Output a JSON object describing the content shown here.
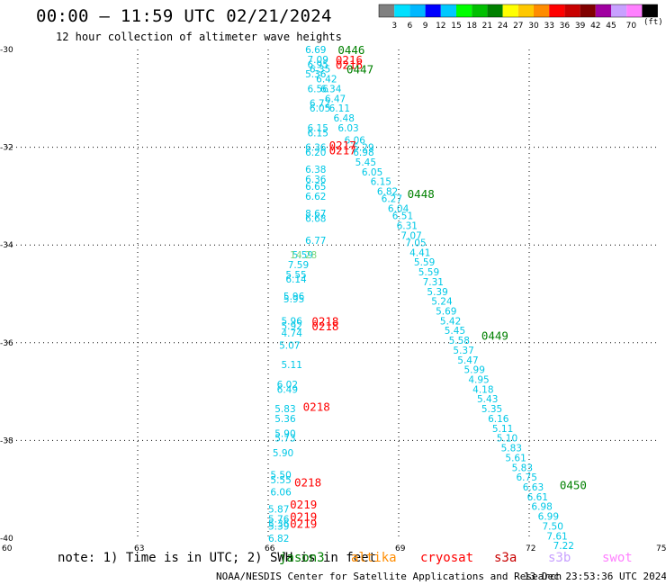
{
  "header": {
    "title": "00:00 – 11:59 UTC 02/21/2024",
    "subtitle": "12 hour collection of altimeter wave heights"
  },
  "scale": {
    "unit": "(ft)",
    "colors": [
      "#808080",
      "#00e0ff",
      "#00b8ff",
      "#0000ff",
      "#00c8ff",
      "#00ff00",
      "#00c000",
      "#008000",
      "#ffff00",
      "#ffc800",
      "#ff8c00",
      "#ff0000",
      "#c80000",
      "#800000",
      "#a000a0",
      "#c8a0ff",
      "#ff80ff",
      "#000000"
    ],
    "labels": [
      "3",
      "6",
      "9",
      "12",
      "15",
      "18",
      "21",
      "24",
      "27",
      "30",
      "33",
      "36",
      "39",
      "42",
      "45",
      "70"
    ]
  },
  "note": "note:  1) Time is in UTC; 2) SWH is in feet",
  "satellites": [
    {
      "name": "jason3",
      "color": "#008000"
    },
    {
      "name": "altika",
      "color": "#ff8c00"
    },
    {
      "name": "cryosat",
      "color": "#ff0000"
    },
    {
      "name": "s3a",
      "color": "#c80000"
    },
    {
      "name": "s3b",
      "color": "#c8a0ff"
    },
    {
      "name": "swot",
      "color": "#ff80ff"
    }
  ],
  "footer": {
    "credit": "NOAA/NESDIS Center for Satellite Applications and Research",
    "generated": "13 Dec 23:53:36 UTC 2024"
  },
  "chart_data": {
    "type": "scatter",
    "xlim": [
      60,
      75
    ],
    "ylim": [
      -40,
      -30
    ],
    "x_ticks": [
      60,
      63,
      66,
      69,
      72,
      75
    ],
    "y_ticks": [
      -30,
      -32,
      -34,
      -36,
      -38,
      -40
    ],
    "grid": true,
    "tracks": [
      {
        "points": [
          {
            "x": 66.85,
            "y": -30.0,
            "v": "6.69"
          },
          {
            "x": 66.9,
            "y": -30.2,
            "v": "7.09"
          },
          {
            "x": 66.9,
            "y": -30.3,
            "v": "6.95"
          },
          {
            "x": 66.95,
            "y": -30.4,
            "v": "6.35"
          },
          {
            "x": 66.85,
            "y": -30.5,
            "v": "5.36"
          },
          {
            "x": 67.1,
            "y": -30.6,
            "v": "6.42"
          },
          {
            "x": 67.2,
            "y": -30.8,
            "v": "6.34"
          },
          {
            "x": 66.9,
            "y": -30.8,
            "v": "6.56"
          },
          {
            "x": 67.3,
            "y": -31.0,
            "v": "6.47"
          },
          {
            "x": 66.95,
            "y": -31.1,
            "v": "6.72"
          },
          {
            "x": 67.4,
            "y": -31.2,
            "v": "6.11"
          },
          {
            "x": 66.95,
            "y": -31.2,
            "v": "6.05"
          },
          {
            "x": 67.5,
            "y": -31.4,
            "v": "6.48"
          },
          {
            "x": 67.6,
            "y": -31.6,
            "v": "6.03"
          },
          {
            "x": 66.9,
            "y": -31.6,
            "v": "6.15"
          },
          {
            "x": 66.9,
            "y": -31.7,
            "v": "6.15"
          },
          {
            "x": 67.75,
            "y": -31.85,
            "v": "6.06"
          },
          {
            "x": 67.95,
            "y": -32.0,
            "v": "5.29"
          },
          {
            "x": 66.85,
            "y": -32.0,
            "v": "6.36"
          },
          {
            "x": 66.85,
            "y": -32.1,
            "v": "6.20"
          },
          {
            "x": 67.95,
            "y": -32.1,
            "v": "6.98"
          },
          {
            "x": 68.0,
            "y": -32.3,
            "v": "5.45"
          },
          {
            "x": 66.85,
            "y": -32.45,
            "v": "6.38"
          },
          {
            "x": 68.15,
            "y": -32.5,
            "v": "6.05"
          },
          {
            "x": 66.85,
            "y": -32.65,
            "v": "6.36"
          },
          {
            "x": 68.35,
            "y": -32.7,
            "v": "6.15"
          },
          {
            "x": 66.85,
            "y": -32.8,
            "v": "6.65"
          },
          {
            "x": 68.5,
            "y": -32.9,
            "v": "6.82"
          },
          {
            "x": 68.6,
            "y": -33.05,
            "v": "6.27"
          },
          {
            "x": 66.85,
            "y": -33.0,
            "v": "6.62"
          },
          {
            "x": 68.75,
            "y": -33.25,
            "v": "6.04"
          },
          {
            "x": 68.85,
            "y": -33.4,
            "v": "6.51"
          },
          {
            "x": 66.85,
            "y": -33.35,
            "v": "8.67"
          },
          {
            "x": 66.85,
            "y": -33.45,
            "v": "6.68"
          },
          {
            "x": 68.95,
            "y": -33.6,
            "v": "6.31"
          },
          {
            "x": 69.05,
            "y": -33.8,
            "v": "7.07"
          },
          {
            "x": 69.15,
            "y": -33.95,
            "v": "7.05"
          },
          {
            "x": 66.85,
            "y": -33.9,
            "v": "6.77"
          },
          {
            "x": 69.25,
            "y": -34.15,
            "v": "4.41"
          },
          {
            "x": 69.35,
            "y": -34.35,
            "v": "5.59"
          },
          {
            "x": 69.45,
            "y": -34.55,
            "v": "5.59"
          },
          {
            "x": 69.55,
            "y": -34.75,
            "v": "7.31"
          },
          {
            "x": 69.65,
            "y": -34.95,
            "v": "5.39"
          },
          {
            "x": 69.75,
            "y": -35.15,
            "v": "5.24"
          },
          {
            "x": 69.85,
            "y": -35.35,
            "v": "5.69"
          },
          {
            "x": 69.95,
            "y": -35.55,
            "v": "5.42"
          },
          {
            "x": 70.05,
            "y": -35.75,
            "v": "5.45"
          },
          {
            "x": 70.15,
            "y": -35.95,
            "v": "5.58"
          },
          {
            "x": 70.25,
            "y": -36.15,
            "v": "5.37"
          },
          {
            "x": 70.35,
            "y": -36.35,
            "v": "5.47"
          },
          {
            "x": 70.5,
            "y": -36.55,
            "v": "5.99"
          },
          {
            "x": 70.6,
            "y": -36.75,
            "v": "4.95"
          },
          {
            "x": 70.7,
            "y": -36.95,
            "v": "4.18"
          },
          {
            "x": 70.8,
            "y": -37.15,
            "v": "5.43"
          },
          {
            "x": 70.9,
            "y": -37.35,
            "v": "5.35"
          },
          {
            "x": 71.05,
            "y": -37.55,
            "v": "6.16"
          },
          {
            "x": 71.15,
            "y": -37.75,
            "v": "5.11"
          },
          {
            "x": 71.25,
            "y": -37.95,
            "v": "5.10"
          },
          {
            "x": 71.35,
            "y": -38.15,
            "v": "5.83"
          },
          {
            "x": 71.45,
            "y": -38.35,
            "v": "5.61"
          },
          {
            "x": 71.6,
            "y": -38.55,
            "v": "5.83"
          },
          {
            "x": 71.7,
            "y": -38.75,
            "v": "6.75"
          },
          {
            "x": 71.85,
            "y": -38.95,
            "v": "6.63"
          },
          {
            "x": 71.95,
            "y": -39.15,
            "v": "6.61"
          },
          {
            "x": 72.05,
            "y": -39.35,
            "v": "6.98"
          },
          {
            "x": 72.2,
            "y": -39.55,
            "v": "6.99"
          },
          {
            "x": 72.3,
            "y": -39.75,
            "v": "7.50"
          },
          {
            "x": 72.4,
            "y": -39.95,
            "v": "7.61"
          },
          {
            "x": 72.55,
            "y": -40.15,
            "v": "7.22"
          }
        ]
      },
      {
        "points": [
          {
            "x": 66.55,
            "y": -34.2,
            "v": "5.59"
          },
          {
            "x": 66.45,
            "y": -34.4,
            "v": "7.59"
          },
          {
            "x": 66.4,
            "y": -34.6,
            "v": "5.55"
          },
          {
            "x": 66.4,
            "y": -34.7,
            "v": "6.14"
          },
          {
            "x": 66.35,
            "y": -35.05,
            "v": "5.96"
          },
          {
            "x": 66.35,
            "y": -35.1,
            "v": "5.95"
          },
          {
            "x": 66.3,
            "y": -35.55,
            "v": "5.96"
          },
          {
            "x": 66.3,
            "y": -35.65,
            "v": "5.92"
          },
          {
            "x": 66.3,
            "y": -35.8,
            "v": "4.74"
          },
          {
            "x": 66.25,
            "y": -36.05,
            "v": "5.07"
          },
          {
            "x": 66.3,
            "y": -36.45,
            "v": "5.11"
          },
          {
            "x": 66.2,
            "y": -36.85,
            "v": "6.02"
          },
          {
            "x": 66.2,
            "y": -36.95,
            "v": "6.49"
          },
          {
            "x": 66.15,
            "y": -37.35,
            "v": "5.83"
          },
          {
            "x": 66.15,
            "y": -37.55,
            "v": "5.36"
          },
          {
            "x": 66.15,
            "y": -37.85,
            "v": "5.90"
          },
          {
            "x": 66.15,
            "y": -37.95,
            "v": "5.73"
          },
          {
            "x": 66.1,
            "y": -38.25,
            "v": "5.90"
          },
          {
            "x": 66.05,
            "y": -38.7,
            "v": "5.50"
          },
          {
            "x": 66.05,
            "y": -38.8,
            "v": "5.55"
          },
          {
            "x": 66.05,
            "y": -39.05,
            "v": "6.06"
          },
          {
            "x": 66.0,
            "y": -39.4,
            "v": "5.87"
          },
          {
            "x": 66.0,
            "y": -39.6,
            "v": "5.76"
          },
          {
            "x": 66.0,
            "y": -39.7,
            "v": "5.36"
          },
          {
            "x": 66.0,
            "y": -39.75,
            "v": "5.39"
          },
          {
            "x": 66.0,
            "y": -40.0,
            "v": "6.82"
          }
        ]
      }
    ],
    "highlight_points": [
      {
        "x": 66.5,
        "y": -34.2,
        "v": "14.28",
        "color": "#7cd67c"
      }
    ],
    "time_labels": [
      {
        "x": 67.6,
        "y": -30.0,
        "t": "0446",
        "color": "#008000"
      },
      {
        "x": 67.55,
        "y": -30.2,
        "t": "0216",
        "color": "#ff0000"
      },
      {
        "x": 67.55,
        "y": -30.3,
        "t": "0216",
        "color": "#ff0000"
      },
      {
        "x": 67.8,
        "y": -30.4,
        "t": "0447",
        "color": "#008000"
      },
      {
        "x": 67.4,
        "y": -31.95,
        "t": "0217",
        "color": "#ff0000"
      },
      {
        "x": 67.4,
        "y": -32.05,
        "t": "0217",
        "color": "#ff0000"
      },
      {
        "x": 69.2,
        "y": -32.95,
        "t": "0448",
        "color": "#008000"
      },
      {
        "x": 67.0,
        "y": -35.55,
        "t": "0218",
        "color": "#ff0000"
      },
      {
        "x": 67.0,
        "y": -35.65,
        "t": "0218",
        "color": "#ff0000"
      },
      {
        "x": 70.9,
        "y": -35.85,
        "t": "0449",
        "color": "#008000"
      },
      {
        "x": 66.8,
        "y": -37.3,
        "t": "0218",
        "color": "#ff0000"
      },
      {
        "x": 72.7,
        "y": -38.9,
        "t": "0450",
        "color": "#008000"
      },
      {
        "x": 66.6,
        "y": -38.85,
        "t": "0218",
        "color": "#ff0000"
      },
      {
        "x": 66.5,
        "y": -39.3,
        "t": "0219",
        "color": "#ff0000"
      },
      {
        "x": 66.5,
        "y": -39.55,
        "t": "0219",
        "color": "#ff0000"
      },
      {
        "x": 66.5,
        "y": -39.7,
        "t": "0219",
        "color": "#ff0000"
      }
    ]
  }
}
